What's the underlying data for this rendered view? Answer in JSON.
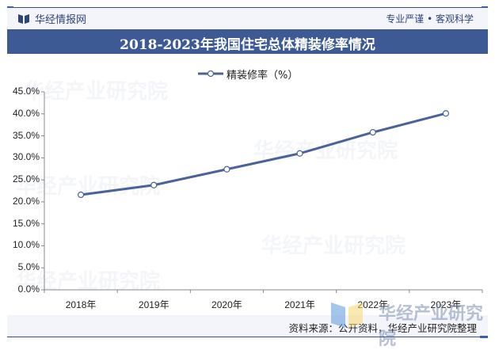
{
  "header": {
    "brand": "华经情报网",
    "slogan": "专业严谨 • 客观科学",
    "title": "2018-2023年我国住宅总体精装修率情况"
  },
  "legend": {
    "label": "精装修率（%）"
  },
  "footer": {
    "source": "资料来源：公开资料，华经产业研究院整理",
    "watermark": "华经产业研究院"
  },
  "colors": {
    "title_bar": "#3d5a94",
    "header_bg": "#f3f5fa",
    "line": "#4a6398",
    "text": "#2e4677"
  },
  "chart_data": {
    "type": "line",
    "title": "2018-2023年我国住宅总体精装修率情况",
    "xlabel": "",
    "ylabel": "",
    "categories": [
      "2018年",
      "2019年",
      "2020年",
      "2021年",
      "2022年",
      "2023年"
    ],
    "series": [
      {
        "name": "精装修率（%）",
        "values": [
          21.6,
          23.8,
          27.4,
          31.0,
          35.8,
          40.1
        ]
      }
    ],
    "yticks": [
      "0.0%",
      "5.0%",
      "10.0%",
      "15.0%",
      "20.0%",
      "25.0%",
      "30.0%",
      "35.0%",
      "40.0%",
      "45.0%"
    ],
    "ylim": [
      0,
      45
    ],
    "grid": false,
    "legend_position": "top"
  }
}
